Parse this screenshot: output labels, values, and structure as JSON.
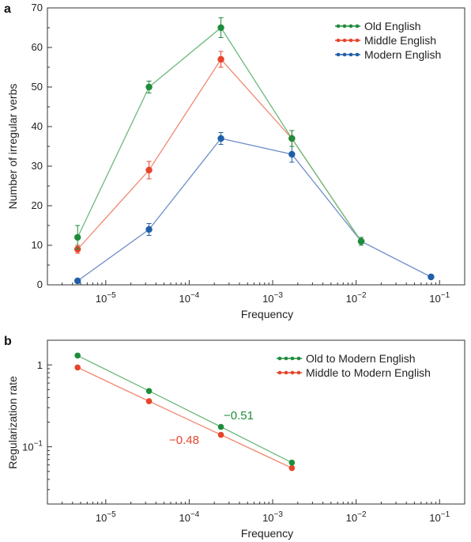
{
  "colors": {
    "old": "#1e8c3a",
    "middle": "#e8432b",
    "modern": "#1f5fa8",
    "old_line": "#6cb97a",
    "middle_line": "#f2876f",
    "modern_line": "#6f8fc8"
  },
  "chart_data": [
    {
      "panel": "a",
      "type": "line",
      "xscale": "log",
      "xlabel": "Frequency",
      "ylabel": "Number of irregular verbs",
      "xlim": [
        2e-06,
        0.2
      ],
      "ylim": [
        0,
        70
      ],
      "yticks": [
        "0",
        "10",
        "20",
        "30",
        "40",
        "50",
        "60",
        "70"
      ],
      "xticks": [
        {
          "base": "10",
          "exp": "−5"
        },
        {
          "base": "10",
          "exp": "−4"
        },
        {
          "base": "10",
          "exp": "−3"
        },
        {
          "base": "10",
          "exp": "−2"
        },
        {
          "base": "10",
          "exp": "−1"
        }
      ],
      "legend_position": "top-right",
      "series": [
        {
          "name": "Old English",
          "color_key": "old",
          "x": [
            4.6e-06,
            3.3e-05,
            0.00024,
            0.0017,
            0.0115
          ],
          "y": [
            12,
            50,
            65,
            37,
            11
          ],
          "err": [
            3,
            1.5,
            2.5,
            2,
            1
          ]
        },
        {
          "name": "Middle English",
          "color_key": "middle",
          "x": [
            4.6e-06,
            3.3e-05,
            0.00024,
            0.0017,
            0.0115
          ],
          "y": [
            9,
            29,
            57,
            37,
            11
          ],
          "err": [
            1,
            2.2,
            2,
            2,
            1
          ]
        },
        {
          "name": "Modern English",
          "color_key": "modern",
          "x": [
            4.6e-06,
            3.3e-05,
            0.00024,
            0.0017,
            0.0115,
            0.079
          ],
          "y": [
            1,
            14,
            37,
            33,
            11,
            2
          ],
          "err": [
            0,
            1.5,
            1.5,
            2,
            1,
            0
          ]
        }
      ]
    },
    {
      "panel": "b",
      "type": "line",
      "xscale": "log",
      "yscale": "log",
      "xlabel": "Frequency",
      "ylabel": "Regularization rate",
      "xlim": [
        2e-06,
        0.2
      ],
      "ylim": [
        0.02,
        2.0
      ],
      "yticks": [
        {
          "value": 1,
          "base": "1",
          "exp": ""
        },
        {
          "value": 0.1,
          "base": "10",
          "exp": "−1"
        }
      ],
      "xticks": [
        {
          "base": "10",
          "exp": "−5"
        },
        {
          "base": "10",
          "exp": "−4"
        },
        {
          "base": "10",
          "exp": "−3"
        },
        {
          "base": "10",
          "exp": "−2"
        },
        {
          "base": "10",
          "exp": "−1"
        }
      ],
      "legend_position": "top-right",
      "series": [
        {
          "name": "Old to Modern English",
          "color_key": "old",
          "x": [
            4.6e-06,
            3.3e-05,
            0.00024,
            0.0017
          ],
          "y": [
            1.3,
            0.48,
            0.175,
            0.064
          ]
        },
        {
          "name": "Middle to Modern English",
          "color_key": "middle",
          "x": [
            4.6e-06,
            3.3e-05,
            0.00024,
            0.0017
          ],
          "y": [
            0.93,
            0.36,
            0.14,
            0.055
          ]
        }
      ],
      "annotations": [
        {
          "text": "−0.51",
          "color_key": "old"
        },
        {
          "text": "−0.48",
          "color_key": "middle"
        }
      ]
    }
  ]
}
